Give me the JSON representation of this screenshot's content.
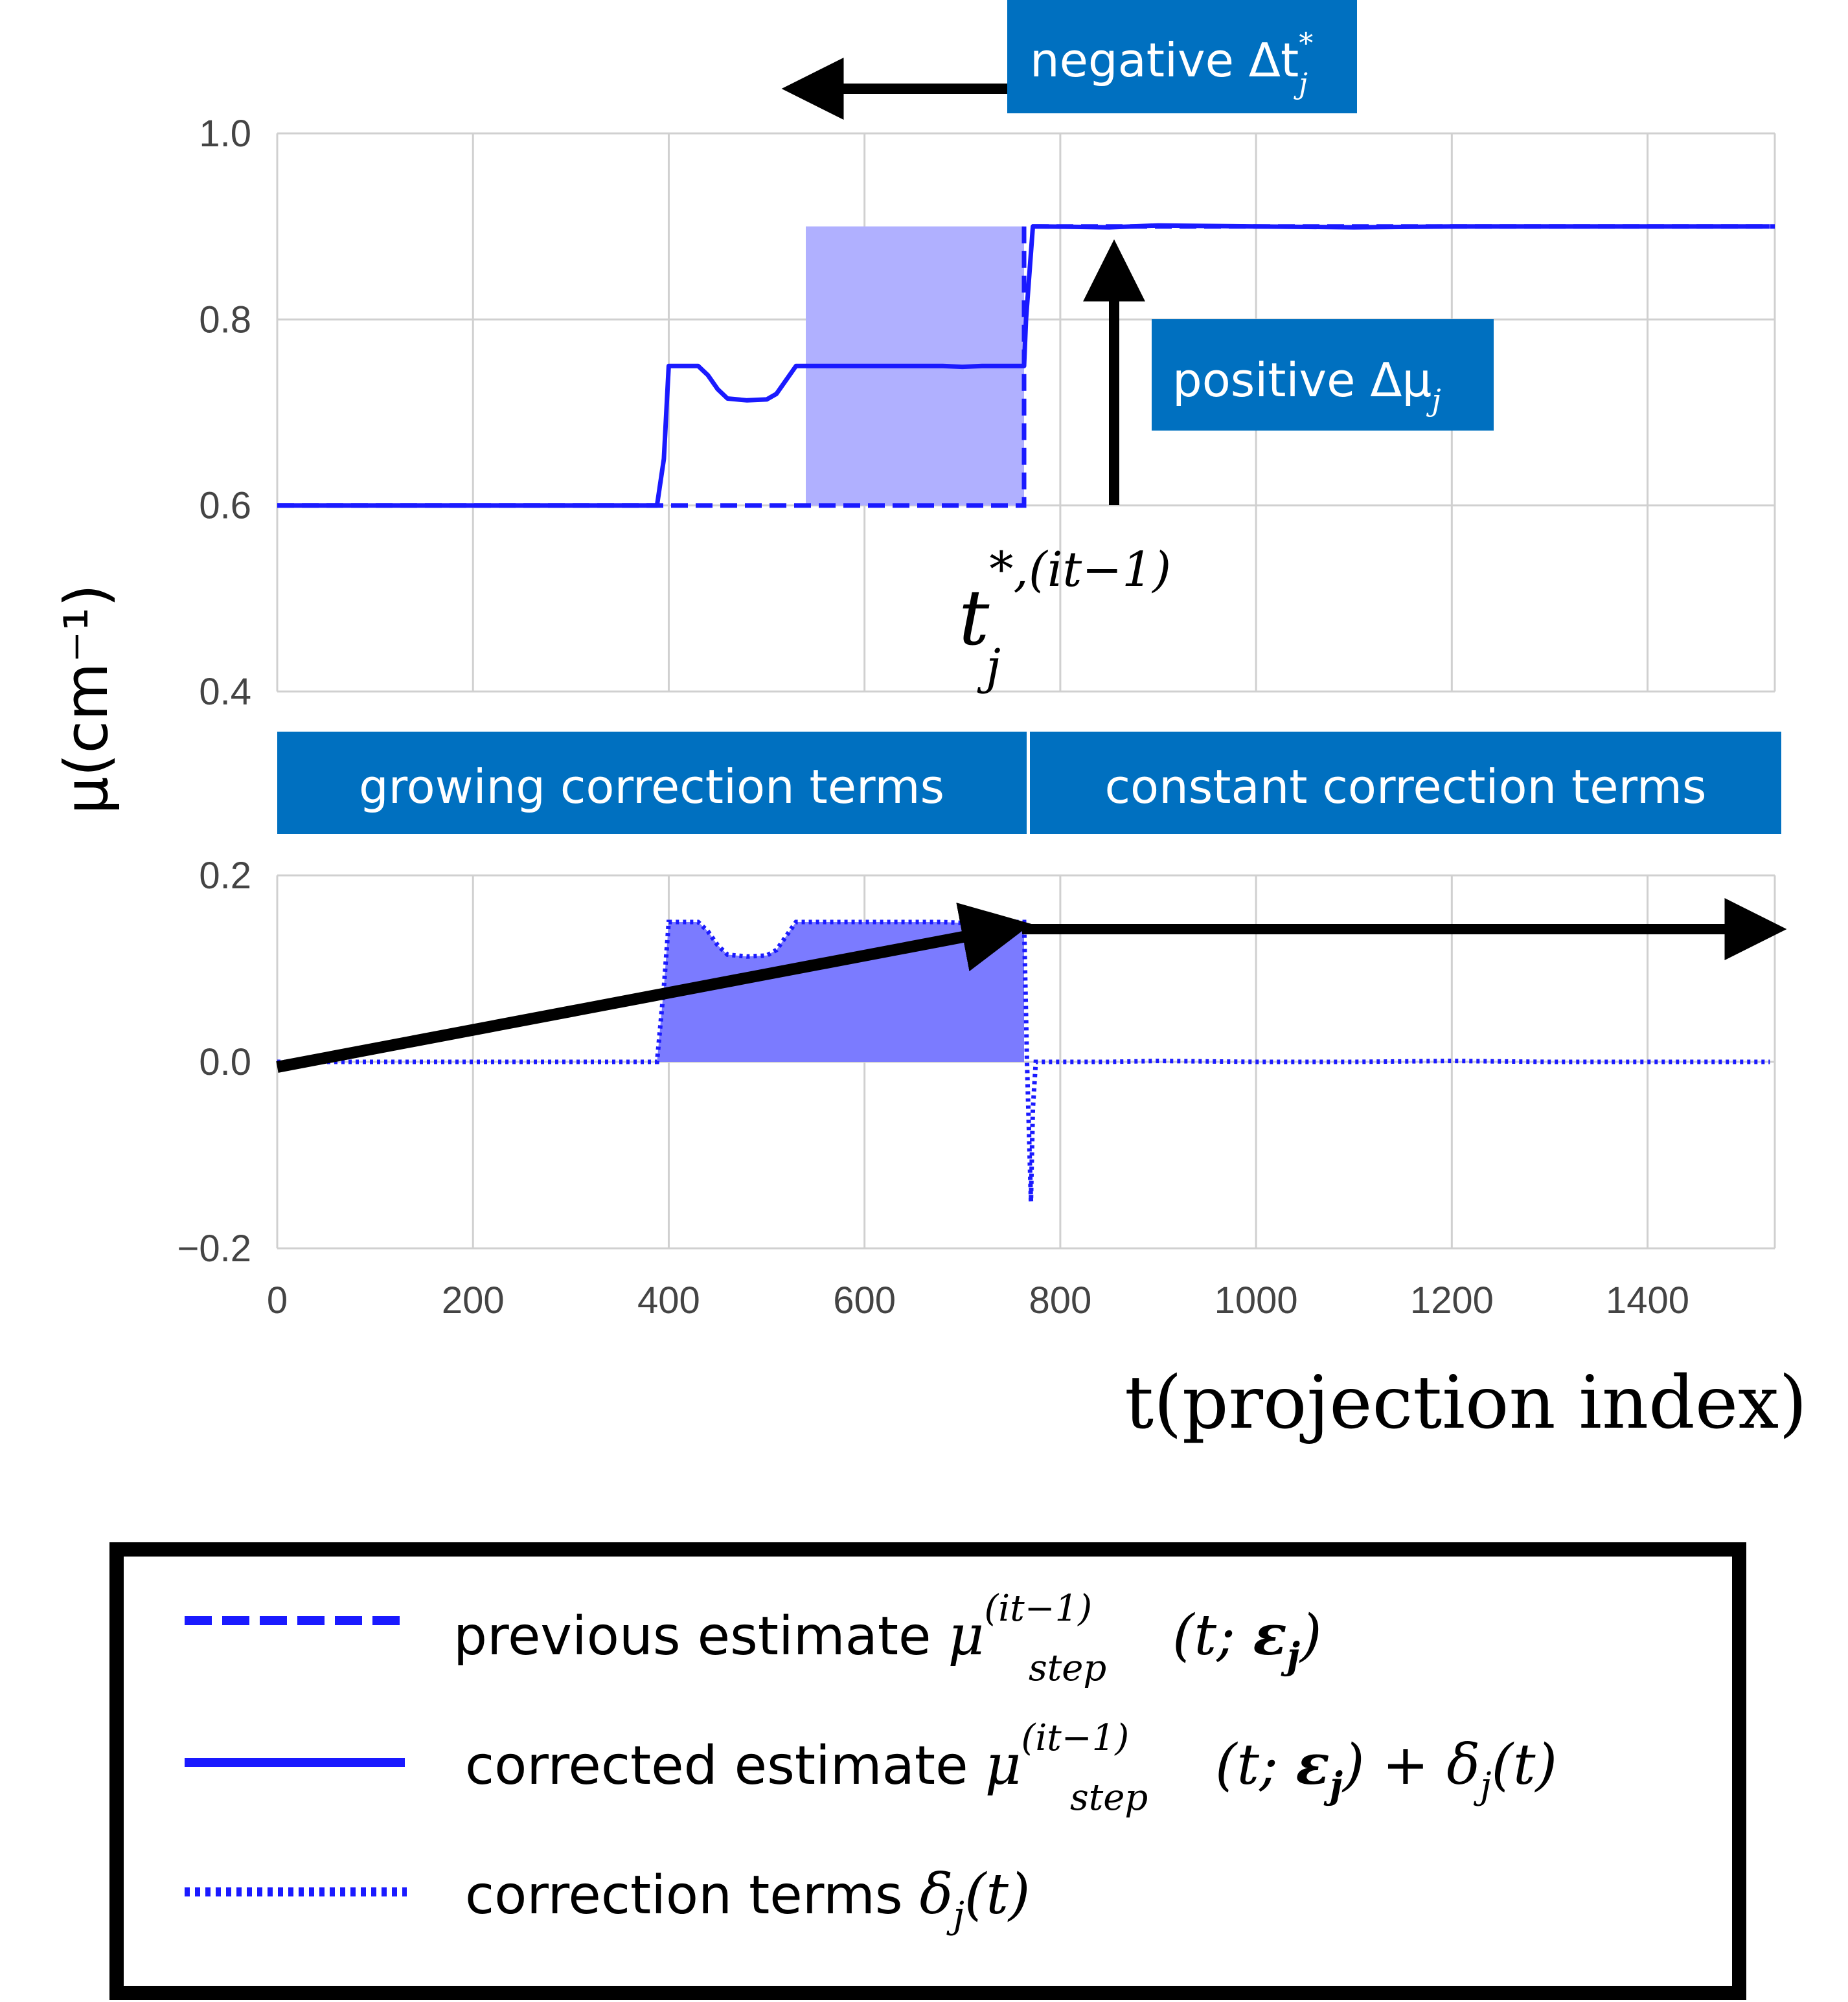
{
  "chart_data": {
    "type": "line",
    "ylabel": "μ(cm⁻¹)",
    "xlabel": "t(projection index)",
    "xlim": [
      0,
      1530
    ],
    "x_ticks": [
      "0",
      "200",
      "400",
      "600",
      "800",
      "1000",
      "1200",
      "1400"
    ],
    "x_tick_values": [
      0,
      200,
      400,
      600,
      800,
      1000,
      1200,
      1400
    ],
    "top_panel": {
      "ylim": [
        0.4,
        1.0
      ],
      "y_ticks": [
        "0.4",
        "0.6",
        "0.8",
        "1.0"
      ],
      "y_tick_values": [
        0.4,
        0.6,
        0.8,
        1.0
      ],
      "shaded_region": {
        "x_start": 540,
        "x_end": 763,
        "y_start": 0.6,
        "y_end": 0.9
      },
      "series": [
        {
          "name": "previous estimate",
          "style": "dashed",
          "x": [
            0,
            763,
            763,
            1530
          ],
          "y": [
            0.6,
            0.6,
            0.9,
            0.9
          ]
        },
        {
          "name": "corrected estimate",
          "style": "solid",
          "x": [
            0,
            388,
            395,
            400,
            420,
            430,
            440,
            450,
            460,
            480,
            500,
            510,
            520,
            530,
            540,
            600,
            680,
            700,
            720,
            740,
            763,
            765,
            772,
            780,
            850,
            900,
            1000,
            1100,
            1200,
            1300,
            1400,
            1525
          ],
          "y": [
            0.6,
            0.6,
            0.65,
            0.75,
            0.75,
            0.75,
            0.74,
            0.725,
            0.715,
            0.713,
            0.714,
            0.72,
            0.735,
            0.75,
            0.75,
            0.75,
            0.75,
            0.749,
            0.75,
            0.75,
            0.75,
            0.8,
            0.9,
            0.9,
            0.899,
            0.901,
            0.9,
            0.899,
            0.9,
            0.9,
            0.9,
            0.9
          ]
        }
      ]
    },
    "bottom_panel": {
      "ylim": [
        -0.2,
        0.2
      ],
      "y_ticks": [
        "−0.2",
        "0.0",
        "0.2"
      ],
      "y_tick_values": [
        -0.2,
        0.0,
        0.2
      ],
      "series": [
        {
          "name": "correction terms",
          "style": "dotted",
          "x": [
            0,
            388,
            395,
            400,
            420,
            430,
            440,
            450,
            460,
            480,
            500,
            510,
            520,
            530,
            540,
            600,
            680,
            700,
            720,
            740,
            763,
            766,
            770,
            772,
            775,
            780,
            850,
            900,
            1000,
            1100,
            1200,
            1300,
            1400,
            1525
          ],
          "y": [
            0.0,
            0.0,
            0.08,
            0.15,
            0.15,
            0.15,
            0.14,
            0.125,
            0.115,
            0.113,
            0.114,
            0.12,
            0.135,
            0.15,
            0.15,
            0.15,
            0.15,
            0.149,
            0.15,
            0.15,
            0.15,
            0.0,
            -0.15,
            -0.05,
            0.0,
            0.0,
            0.0,
            0.001,
            0.0,
            0.0,
            0.001,
            0.0,
            0.0,
            0.0
          ]
        }
      ]
    }
  },
  "annotations": {
    "negative_box": "negative Δt",
    "negative_box_sup": "*",
    "negative_box_sub": "j",
    "positive_box": "positive Δμ",
    "positive_box_sub": "j",
    "t_label_main": "t",
    "t_label_sup": "*,(it−1)",
    "t_label_sub": "j",
    "growing_box": "growing correction terms",
    "constant_box": "constant correction terms"
  },
  "legend": {
    "item1_text": "previous estimate ",
    "item2_text": "corrected estimate ",
    "item3_text": "correction terms ",
    "mu": "μ",
    "mu_sup": "(it−1)",
    "mu_sub": "step",
    "args_open": "(t; ",
    "eps": "ε",
    "eps_sub": "j",
    "args_close": ")",
    "plus": " + ",
    "delta": "δ",
    "delta_sub": "j",
    "delta_args": "(t)"
  },
  "colors": {
    "series": "#1a1aff",
    "shade_top": "#b0b0ff",
    "shade_bottom": "#7b7bff",
    "box": "#0070c0",
    "grid": "#d0d0d0"
  }
}
